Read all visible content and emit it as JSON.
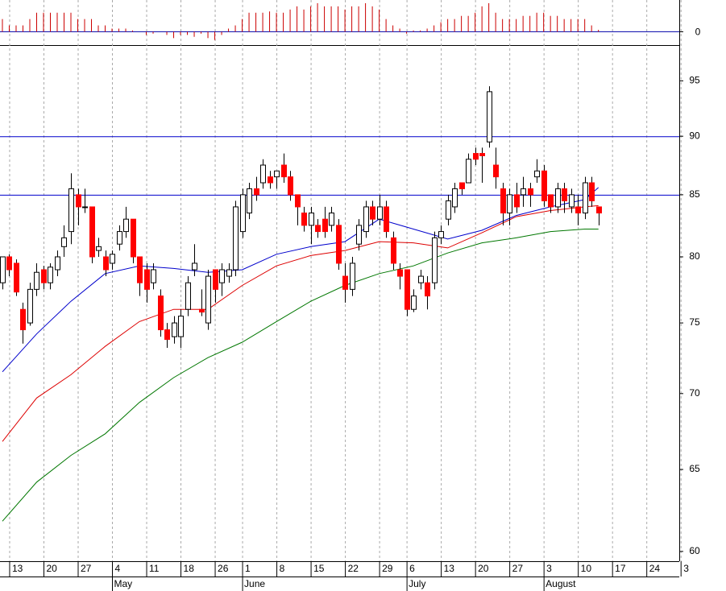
{
  "chart_data": [
    {
      "type": "bar",
      "color": "#cc0000",
      "zero_color": "#0000aa",
      "values": [
        2,
        1,
        1,
        1,
        2,
        3,
        3,
        3,
        3,
        3,
        3,
        2,
        2,
        2,
        1,
        1,
        0.5,
        0.5,
        0.5,
        0.2,
        0,
        -0.5,
        -0.3,
        0,
        -0.5,
        -1,
        -0.5,
        -0.5,
        -0.8,
        -0.3,
        -1,
        -1.3,
        -0.5,
        0.5,
        1,
        2,
        3,
        3,
        3,
        3.2,
        3,
        3,
        3.5,
        4,
        3.5,
        4,
        4.5,
        4,
        4,
        4,
        3.5,
        4,
        4,
        4.5,
        4,
        3.5,
        2,
        1,
        0.5,
        -0.3,
        0.2,
        0.2,
        0.5,
        1,
        1.5,
        2,
        2,
        2.5,
        2.5,
        3,
        4,
        4.5,
        3,
        2,
        2,
        2,
        2.5,
        2.5,
        3,
        3,
        2.5,
        2.5,
        2,
        2,
        2,
        2,
        1,
        0.3
      ],
      "ylim": [
        -2.1,
        5
      ],
      "yticks": [
        0
      ],
      "xlim": [
        -0.35,
        98.8
      ]
    },
    {
      "type": "candlestick",
      "log_scale": true,
      "grid": true,
      "up_color": "#ffffff",
      "down_color": "#ff0000",
      "open": [
        78,
        80,
        79.5,
        76,
        75,
        77.5,
        79,
        78,
        79,
        80.8,
        82,
        85,
        84,
        84,
        80.5,
        80,
        79.5,
        81,
        82,
        83,
        80,
        79,
        78,
        77,
        74.5,
        74,
        74,
        76,
        79,
        76,
        75,
        79,
        78,
        78.5,
        79,
        82,
        83.5,
        85.5,
        86,
        86.5,
        86.5,
        87.5,
        86.5,
        85,
        83.5,
        82.5,
        82.5,
        83,
        82.5,
        82.5,
        78.5,
        77.5,
        81,
        82,
        84,
        83,
        84,
        81.5,
        79,
        79,
        76,
        78,
        78,
        78,
        81.5,
        83,
        84,
        86,
        86,
        88.5,
        88.5,
        89.5,
        87.5,
        85.5,
        83.5,
        85,
        85,
        85.5,
        86.5,
        87,
        85,
        84,
        85.5,
        84,
        84,
        83.5,
        86,
        84
      ],
      "high": [
        80,
        80.2,
        79.8,
        76.5,
        78,
        79.5,
        79.3,
        79.5,
        80.5,
        82.5,
        86.8,
        85.5,
        85.5,
        84,
        81.5,
        80.5,
        80.5,
        82.5,
        84,
        83,
        80,
        79.5,
        79.5,
        77.5,
        75,
        75.5,
        76,
        78.5,
        81,
        77.5,
        79,
        79,
        79.5,
        79.5,
        84.5,
        85.5,
        86,
        86.5,
        88,
        87,
        87,
        88.5,
        87,
        85,
        84,
        84,
        83,
        84,
        84,
        83,
        79.5,
        80,
        83,
        84.5,
        84.5,
        85,
        84.5,
        82,
        79.5,
        79,
        77.5,
        79,
        78.5,
        82,
        82.5,
        85,
        86,
        86,
        88.5,
        89,
        89,
        94.5,
        89,
        86,
        85.5,
        86,
        86.5,
        86,
        88,
        87.5,
        85,
        86,
        86,
        85.5,
        85,
        86.5,
        86.5,
        84
      ],
      "low": [
        77.5,
        78.5,
        77,
        73.5,
        74.8,
        77,
        77.5,
        77.5,
        78.5,
        80,
        81,
        82.5,
        83.5,
        79.5,
        80,
        78.5,
        79,
        80.5,
        81.5,
        79.5,
        77,
        76.5,
        77.5,
        74,
        73.2,
        73.5,
        73.2,
        75.5,
        78.5,
        75.5,
        74.5,
        76.5,
        77,
        78,
        78.5,
        81.5,
        83,
        84.5,
        85.5,
        85.5,
        85.5,
        86,
        84.5,
        82.5,
        82,
        81,
        81.5,
        81.5,
        82,
        79,
        76.5,
        77,
        80.5,
        81.5,
        82.5,
        82.5,
        81.5,
        79,
        77.5,
        75.5,
        75.8,
        77.5,
        76,
        77.5,
        81,
        82.5,
        83.5,
        85,
        86,
        87.5,
        86,
        89,
        85.5,
        82.5,
        82.5,
        83.5,
        84,
        84,
        86,
        84,
        83.5,
        83.5,
        83.5,
        83.5,
        82.5,
        83,
        84,
        82.5
      ],
      "close": [
        80,
        79,
        77.3,
        74.5,
        77.5,
        78.8,
        78,
        79.2,
        80,
        81.5,
        85.5,
        84,
        84,
        80,
        80.8,
        79,
        80.2,
        82,
        83,
        80,
        78,
        77.5,
        79,
        74.5,
        73.8,
        75,
        75.5,
        78,
        79.5,
        75.8,
        78.5,
        77.5,
        79,
        79,
        84,
        85,
        85.5,
        85,
        87.5,
        86,
        87,
        86.5,
        85,
        84,
        82.5,
        83.5,
        82,
        82,
        83.5,
        79.5,
        77.5,
        79.5,
        82.5,
        84,
        83,
        84,
        82,
        79.5,
        78.5,
        76,
        77,
        78.5,
        77,
        81.5,
        82,
        84.5,
        85.5,
        85.5,
        88,
        88,
        88.3,
        94,
        86.5,
        83.5,
        85,
        84,
        85.5,
        85,
        87,
        84.5,
        84,
        85.5,
        84.5,
        85,
        83.5,
        86,
        84.5,
        83.5
      ],
      "ylim": [
        59.43,
        98.3
      ],
      "yticks": [
        60,
        65,
        70,
        75,
        80,
        85,
        90,
        95
      ],
      "reference_lines": [
        90,
        85
      ],
      "reference_color": "#0000cc",
      "xlim": [
        -0.35,
        98.8
      ],
      "xticks": [
        {
          "value": 1,
          "label": "13"
        },
        {
          "value": 6,
          "label": "20"
        },
        {
          "value": 11,
          "label": "27"
        },
        {
          "value": 16,
          "label": "4"
        },
        {
          "value": 21,
          "label": "11"
        },
        {
          "value": 26,
          "label": "18"
        },
        {
          "value": 31,
          "label": "26"
        },
        {
          "value": 35,
          "label": "1"
        },
        {
          "value": 40,
          "label": "8"
        },
        {
          "value": 45,
          "label": "15"
        },
        {
          "value": 50,
          "label": "22"
        },
        {
          "value": 55,
          "label": "29"
        },
        {
          "value": 59,
          "label": "6"
        },
        {
          "value": 64,
          "label": "13"
        },
        {
          "value": 69,
          "label": "20"
        },
        {
          "value": 74,
          "label": "27"
        },
        {
          "value": 79,
          "label": "3"
        },
        {
          "value": 84,
          "label": "10"
        },
        {
          "value": 89,
          "label": "17"
        },
        {
          "value": 94,
          "label": "24"
        },
        {
          "value": 99,
          "label": "3"
        }
      ],
      "month_ticks": [
        {
          "value": 16,
          "label": "May"
        },
        {
          "value": 35,
          "label": "June"
        },
        {
          "value": 59,
          "label": "July"
        },
        {
          "value": 79,
          "label": "August"
        }
      ],
      "series": [
        {
          "color": "#0000cc",
          "x": [
            0,
            5,
            10,
            15,
            20,
            25,
            30,
            35,
            40,
            45,
            50,
            55,
            60,
            65,
            70,
            75,
            80,
            85,
            87
          ],
          "values": [
            71.5,
            74.2,
            76.6,
            78.7,
            79.3,
            79.1,
            78.8,
            79.0,
            80.2,
            80.8,
            81.2,
            83.0,
            82.2,
            81.4,
            82.1,
            83.3,
            84.0,
            84.6,
            85.6
          ]
        },
        {
          "color": "#dd0000",
          "x": [
            0,
            5,
            10,
            15,
            20,
            25,
            30,
            35,
            40,
            45,
            50,
            55,
            60,
            65,
            70,
            75,
            80,
            85,
            87
          ],
          "values": [
            66.8,
            69.7,
            71.3,
            73.3,
            75.1,
            76.0,
            76.0,
            77.8,
            79.3,
            80.1,
            80.5,
            81.2,
            81.1,
            80.7,
            81.9,
            83.2,
            83.7,
            84.0,
            84.1
          ]
        },
        {
          "color": "#007700",
          "x": [
            0,
            5,
            10,
            15,
            20,
            25,
            30,
            35,
            40,
            45,
            50,
            55,
            60,
            65,
            70,
            75,
            80,
            85,
            87
          ],
          "values": [
            61.8,
            64.2,
            65.9,
            67.3,
            69.4,
            71.1,
            72.5,
            73.6,
            75.1,
            76.6,
            77.8,
            78.7,
            79.3,
            80.3,
            81.1,
            81.5,
            82.0,
            82.2,
            82.2
          ]
        }
      ]
    }
  ]
}
